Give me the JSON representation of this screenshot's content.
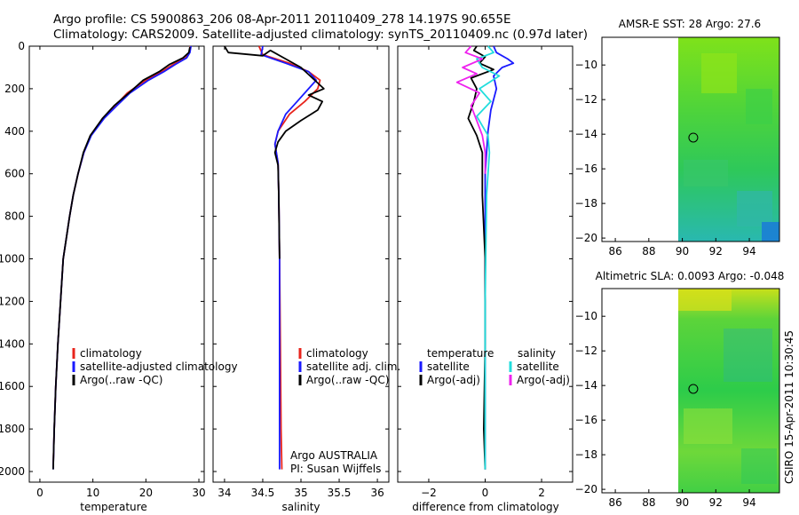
{
  "header": {
    "line1": "Argo profile: CS 5900863_206 08-Apr-2011 20110409_278 14.197S 90.655E",
    "line2": "Climatology: CARS2009. Satellite-adjusted climatology: synTS_20110409.nc (0.97d later)"
  },
  "footer_stamp": "CSIRO 15-Apr-2011 10:30:45",
  "colors": {
    "climatology": "#e8241c",
    "satellite": "#1a1aff",
    "argo": "#000000",
    "sal_satellite": "#22dddd",
    "sal_argo": "#ee22ee"
  },
  "chart_data": [
    {
      "id": "temperature",
      "type": "line",
      "xlabel": "temperature",
      "ylabel": "",
      "xlim": [
        -2,
        31
      ],
      "ylim": [
        2050,
        0
      ],
      "xticks": [
        0,
        10,
        20,
        30
      ],
      "yticks": [
        0,
        200,
        400,
        600,
        800,
        1000,
        1200,
        1400,
        1600,
        1800,
        2000
      ],
      "legend": [
        "climatology",
        "satellite-adjusted climatology",
        "Argo(..raw -QC)"
      ],
      "series": [
        {
          "name": "climatology",
          "color": "#e8241c",
          "x": [
            28.4,
            28.2,
            27.5,
            25.2,
            23.0,
            20.0,
            16.5,
            14.2,
            12.0,
            9.6,
            8.3,
            7.2,
            6.3,
            5.6,
            5.0,
            4.4,
            3.9,
            3.4,
            3.0,
            2.7,
            2.5
          ],
          "y": [
            0,
            30,
            55,
            85,
            120,
            160,
            220,
            280,
            340,
            420,
            500,
            600,
            700,
            800,
            900,
            1000,
            1200,
            1400,
            1600,
            1800,
            1980
          ]
        },
        {
          "name": "satellite-adjusted climatology",
          "color": "#1a1aff",
          "x": [
            28.5,
            28.3,
            27.7,
            25.6,
            23.4,
            20.5,
            17.0,
            14.5,
            12.1,
            9.7,
            8.3,
            7.2,
            6.3,
            5.6,
            5.0,
            4.4,
            3.9,
            3.4,
            3.0,
            2.7,
            2.5
          ],
          "y": [
            0,
            30,
            55,
            85,
            120,
            160,
            220,
            280,
            340,
            420,
            500,
            600,
            700,
            800,
            900,
            1000,
            1200,
            1400,
            1600,
            1800,
            1990
          ]
        },
        {
          "name": "Argo(..raw -QC)",
          "color": "#000000",
          "x": [
            28.3,
            28.1,
            27.0,
            24.5,
            22.5,
            19.5,
            16.8,
            14.0,
            11.8,
            9.5,
            8.2,
            7.2,
            6.3,
            5.6,
            5.0,
            4.4,
            3.9,
            3.4,
            3.0,
            2.7,
            2.5
          ],
          "y": [
            5,
            30,
            55,
            85,
            120,
            160,
            220,
            280,
            340,
            420,
            500,
            600,
            700,
            800,
            900,
            1000,
            1200,
            1400,
            1600,
            1800,
            1990
          ]
        }
      ]
    },
    {
      "id": "salinity",
      "type": "line",
      "xlabel": "salinity",
      "xlim": [
        33.85,
        36.15
      ],
      "ylim": [
        2050,
        0
      ],
      "xticks": [
        34,
        34.5,
        35,
        35.5,
        36
      ],
      "legend": [
        "climatology",
        "satellite adj. clim.",
        "Argo(..raw -QC)"
      ],
      "annotation": [
        "Argo AUSTRALIA",
        "PI: Susan Wijffels"
      ],
      "series": [
        {
          "name": "climatology",
          "color": "#e8241c",
          "x": [
            34.45,
            34.5,
            34.85,
            35.1,
            35.25,
            35.22,
            35.05,
            34.85,
            34.7,
            34.66,
            34.7,
            34.71,
            34.72,
            34.73,
            34.74,
            34.75
          ],
          "y": [
            0,
            40,
            80,
            120,
            160,
            200,
            260,
            320,
            400,
            460,
            550,
            700,
            1000,
            1400,
            1800,
            1990
          ]
        },
        {
          "name": "satellite adj. clim.",
          "color": "#1a1aff",
          "x": [
            34.5,
            34.48,
            34.8,
            35.1,
            35.2,
            35.1,
            34.95,
            34.8,
            34.7,
            34.66,
            34.7,
            34.71,
            34.72,
            34.72,
            34.72,
            34.72
          ],
          "y": [
            0,
            40,
            80,
            120,
            160,
            200,
            260,
            320,
            400,
            460,
            550,
            700,
            1000,
            1400,
            1800,
            1990
          ]
        },
        {
          "name": "Argo(..raw -QC)",
          "color": "#000000",
          "x": [
            34.0,
            34.05,
            34.5,
            34.6,
            34.8,
            35.0,
            35.15,
            35.3,
            35.1,
            35.28,
            35.22,
            35.0,
            34.8,
            34.7,
            34.66,
            34.7,
            34.71,
            34.72
          ],
          "y": [
            0,
            30,
            45,
            20,
            60,
            100,
            150,
            200,
            230,
            260,
            300,
            350,
            400,
            450,
            500,
            560,
            700,
            1000
          ]
        }
      ]
    },
    {
      "id": "difference",
      "type": "line",
      "xlabel": "difference from climatology",
      "xlim": [
        -3.1,
        3.1
      ],
      "ylim": [
        2050,
        0
      ],
      "xticks": [
        -2,
        0,
        2
      ],
      "legend_temperature": {
        "title": "temperature",
        "entries": [
          "satellite",
          "Argo(-adj)"
        ]
      },
      "legend_salinity": {
        "title": "salinity",
        "entries": [
          "satellite",
          "Argo(-adj)"
        ]
      },
      "series": [
        {
          "name": "temperature satellite",
          "color": "#1a1aff",
          "x": [
            0.3,
            0.4,
            0.8,
            1.0,
            0.6,
            0.3,
            0.4,
            0.2,
            0.1,
            0.0,
            0.0,
            0.0,
            0.0
          ],
          "y": [
            0,
            30,
            60,
            80,
            100,
            140,
            200,
            300,
            400,
            600,
            1000,
            1500,
            1990
          ]
        },
        {
          "name": "temperature Argo(-adj)",
          "color": "#000000",
          "x": [
            -0.3,
            -0.4,
            0.0,
            -0.2,
            0.3,
            -0.5,
            -0.3,
            -0.4,
            -0.6,
            -0.3,
            -0.1,
            -0.1,
            0.0,
            0.0,
            -0.05,
            0.0
          ],
          "y": [
            0,
            20,
            50,
            80,
            110,
            150,
            200,
            260,
            340,
            420,
            500,
            700,
            1000,
            1400,
            1800,
            1990
          ]
        },
        {
          "name": "salinity satellite",
          "color": "#22dddd",
          "x": [
            0.1,
            0.3,
            -0.3,
            -0.1,
            0.5,
            -0.2,
            0.2,
            -0.3,
            0.1,
            0.15,
            0.05,
            0.0,
            0.0
          ],
          "y": [
            0,
            30,
            60,
            100,
            140,
            200,
            260,
            330,
            420,
            500,
            700,
            1200,
            1990
          ]
        },
        {
          "name": "salinity Argo(-adj)",
          "color": "#ee22ee",
          "x": [
            -0.5,
            -0.7,
            -0.1,
            -0.8,
            -0.3,
            -1.0,
            -0.2,
            -0.5,
            -0.3,
            -0.1,
            0.0,
            0.0
          ],
          "y": [
            0,
            30,
            60,
            100,
            130,
            170,
            220,
            280,
            350,
            420,
            500,
            600
          ]
        }
      ]
    },
    {
      "id": "sst-map",
      "type": "heatmap",
      "title": "AMSR-E SST: 28 Argo: 27.6",
      "xlim": [
        85.2,
        95.8
      ],
      "ylim": [
        -20.2,
        -8.4
      ],
      "xticks": [
        86,
        88,
        90,
        92,
        94
      ],
      "yticks": [
        -10,
        -12,
        -14,
        -16,
        -18,
        -20
      ],
      "marker": {
        "lon": 90.655,
        "lat": -14.197
      }
    },
    {
      "id": "sla-map",
      "type": "heatmap",
      "title": "Altimetric SLA: 0.0093 Argo: -0.048",
      "xlim": [
        85.2,
        95.8
      ],
      "ylim": [
        -20.2,
        -8.4
      ],
      "xticks": [
        86,
        88,
        90,
        92,
        94
      ],
      "yticks": [
        -10,
        -12,
        -14,
        -16,
        -18,
        -20
      ],
      "marker": {
        "lon": 90.655,
        "lat": -14.197
      }
    }
  ]
}
